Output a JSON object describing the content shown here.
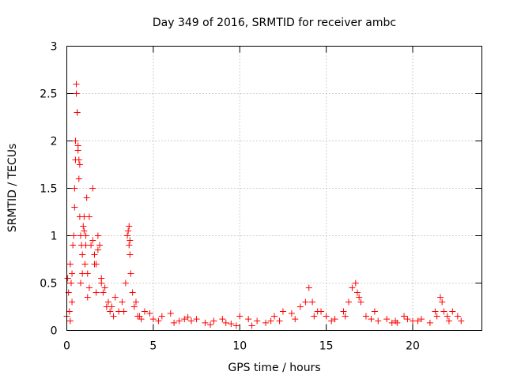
{
  "chart_data": {
    "type": "scatter",
    "title": "Day 349 of 2016, SRMTID for receiver ambc",
    "xlabel": "GPS time / hours",
    "ylabel": "SRMTID / TECUs",
    "xlim": [
      0,
      24
    ],
    "ylim": [
      0,
      3
    ],
    "x_ticks": [
      0,
      5,
      10,
      15,
      20
    ],
    "x_tick_labels": [
      "0",
      "5",
      "10",
      "15",
      "20"
    ],
    "y_ticks": [
      0,
      0.5,
      1,
      1.5,
      2,
      2.5,
      3
    ],
    "y_tick_labels": [
      "0",
      "0.5",
      "1",
      "1.5",
      "2",
      "2.5",
      "3"
    ],
    "grid": true,
    "marker": "plus",
    "series": [
      {
        "name": "SRMTID",
        "color": "#ff0000",
        "x": [
          0.0,
          0.05,
          0.1,
          0.15,
          0.2,
          0.25,
          0.3,
          0.35,
          0.4,
          0.45,
          0.5,
          0.55,
          0.6,
          0.65,
          0.7,
          0.75,
          0.8,
          0.85,
          0.9,
          0.95,
          1.0,
          1.05,
          1.1,
          1.15,
          1.2,
          1.3,
          1.4,
          1.5,
          1.6,
          1.7,
          1.8,
          1.9,
          2.0,
          2.1,
          2.2,
          2.4,
          2.6,
          2.8,
          3.0,
          3.2,
          3.4,
          3.5,
          3.55,
          3.6,
          3.65,
          3.7,
          3.8,
          3.9,
          4.0,
          4.2,
          4.5,
          5.0,
          5.5,
          6.0,
          6.5,
          7.0,
          7.5,
          8.0,
          8.5,
          9.0,
          9.5,
          10.0,
          10.5,
          11.0,
          11.5,
          12.0,
          12.5,
          13.0,
          13.5,
          13.8,
          14.0,
          14.2,
          14.5,
          15.0,
          15.5,
          16.0,
          16.3,
          16.5,
          16.7,
          16.8,
          17.0,
          17.3,
          17.6,
          18.0,
          18.5,
          19.0,
          19.5,
          20.0,
          20.5,
          21.0,
          21.3,
          21.6,
          21.7,
          21.8,
          22.0,
          22.3,
          22.6,
          22.8,
          0.55,
          0.6,
          0.65,
          0.7,
          0.75,
          0.5,
          0.45,
          1.0,
          1.1,
          1.5,
          1.6,
          1.8,
          2.0,
          3.6,
          3.65,
          0.3,
          0.2,
          0.8,
          1.2,
          2.3,
          2.7,
          3.3,
          4.3,
          4.8,
          5.3,
          6.2,
          7.2,
          8.3,
          9.2,
          10.7,
          12.3,
          13.2,
          14.7,
          15.3,
          16.1,
          17.8,
          18.8,
          19.7,
          20.3,
          21.4,
          22.1,
          0.9,
          1.3,
          1.7,
          2.5,
          4.1,
          6.8,
          9.8,
          11.8,
          14.3,
          16.9,
          19.1
        ],
        "y": [
          0.15,
          0.55,
          0.4,
          0.2,
          0.7,
          0.5,
          0.6,
          0.9,
          1.0,
          1.3,
          1.8,
          2.6,
          2.3,
          1.9,
          1.6,
          1.2,
          1.0,
          0.9,
          0.8,
          1.1,
          1.05,
          0.7,
          0.9,
          1.4,
          0.6,
          1.2,
          0.9,
          1.5,
          0.8,
          0.7,
          1.0,
          0.9,
          0.5,
          0.4,
          0.45,
          0.3,
          0.25,
          0.35,
          0.2,
          0.3,
          0.5,
          1.0,
          1.05,
          0.9,
          0.8,
          0.6,
          0.4,
          0.25,
          0.3,
          0.15,
          0.2,
          0.12,
          0.15,
          0.18,
          0.1,
          0.14,
          0.12,
          0.08,
          0.1,
          0.12,
          0.07,
          0.15,
          0.12,
          0.1,
          0.08,
          0.15,
          0.2,
          0.18,
          0.25,
          0.3,
          0.45,
          0.3,
          0.2,
          0.15,
          0.12,
          0.2,
          0.3,
          0.45,
          0.5,
          0.4,
          0.3,
          0.15,
          0.12,
          0.1,
          0.12,
          0.1,
          0.15,
          0.1,
          0.12,
          0.08,
          0.2,
          0.35,
          0.3,
          0.2,
          0.15,
          0.2,
          0.15,
          0.1,
          2.5,
          2.3,
          1.95,
          1.8,
          1.75,
          2.0,
          1.5,
          1.2,
          1.0,
          0.95,
          0.7,
          0.85,
          0.55,
          1.1,
          0.95,
          0.3,
          0.1,
          0.5,
          0.35,
          0.25,
          0.15,
          0.2,
          0.12,
          0.18,
          0.1,
          0.08,
          0.1,
          0.06,
          0.08,
          0.05,
          0.1,
          0.12,
          0.2,
          0.1,
          0.15,
          0.2,
          0.08,
          0.12,
          0.1,
          0.15,
          0.1,
          0.6,
          0.45,
          0.4,
          0.2,
          0.15,
          0.12,
          0.05,
          0.1,
          0.15,
          0.35,
          0.08
        ]
      }
    ]
  }
}
